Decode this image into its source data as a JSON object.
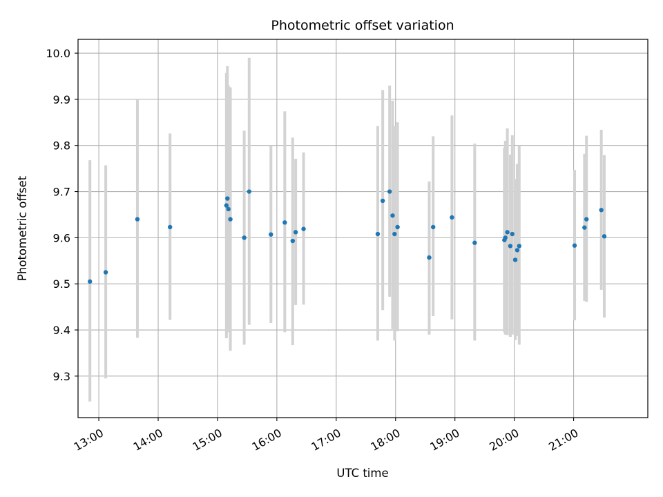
{
  "chart_data": {
    "type": "scatter",
    "title": "Photometric offset variation",
    "xlabel": "UTC time",
    "ylabel": "Photometric offset",
    "x_ticks": [
      "13:00",
      "14:00",
      "15:00",
      "16:00",
      "17:00",
      "18:00",
      "19:00",
      "20:00",
      "21:00"
    ],
    "y_ticks": [
      "9.3",
      "9.4",
      "9.5",
      "9.6",
      "9.7",
      "9.8",
      "9.9",
      "10.0"
    ],
    "xlim": [
      "12:39",
      "22:15"
    ],
    "ylim": [
      9.21,
      10.03
    ],
    "grid": true,
    "marker_color": "#1f77b4",
    "errorbar_color": "#d3d3d3",
    "series": [
      {
        "points": [
          {
            "x": "12:51",
            "y": 9.505,
            "ylow": 9.245,
            "yhigh": 9.768
          },
          {
            "x": "13:07",
            "y": 9.525,
            "ylow": 9.295,
            "yhigh": 9.757
          },
          {
            "x": "13:39",
            "y": 9.64,
            "ylow": 9.383,
            "yhigh": 9.9
          },
          {
            "x": "14:12",
            "y": 9.623,
            "ylow": 9.422,
            "yhigh": 9.826
          },
          {
            "x": "15:09",
            "y": 9.67,
            "ylow": 9.382,
            "yhigh": 9.957
          },
          {
            "x": "15:10",
            "y": 9.685,
            "ylow": 9.399,
            "yhigh": 9.972
          },
          {
            "x": "15:11",
            "y": 9.662,
            "ylow": 9.395,
            "yhigh": 9.93
          },
          {
            "x": "15:13",
            "y": 9.64,
            "ylow": 9.355,
            "yhigh": 9.926
          },
          {
            "x": "15:27",
            "y": 9.6,
            "ylow": 9.368,
            "yhigh": 9.832
          },
          {
            "x": "15:32",
            "y": 9.7,
            "ylow": 9.411,
            "yhigh": 9.99
          },
          {
            "x": "15:54",
            "y": 9.607,
            "ylow": 9.415,
            "yhigh": 9.8
          },
          {
            "x": "16:08",
            "y": 9.633,
            "ylow": 9.395,
            "yhigh": 9.874
          },
          {
            "x": "16:16",
            "y": 9.593,
            "ylow": 9.367,
            "yhigh": 9.817
          },
          {
            "x": "16:19",
            "y": 9.612,
            "ylow": 9.454,
            "yhigh": 9.771
          },
          {
            "x": "16:27",
            "y": 9.619,
            "ylow": 9.455,
            "yhigh": 9.785
          },
          {
            "x": "17:42",
            "y": 9.608,
            "ylow": 9.377,
            "yhigh": 9.842
          },
          {
            "x": "17:47",
            "y": 9.68,
            "ylow": 9.443,
            "yhigh": 9.92
          },
          {
            "x": "17:54",
            "y": 9.7,
            "ylow": 9.472,
            "yhigh": 9.93
          },
          {
            "x": "17:57",
            "y": 9.648,
            "ylow": 9.402,
            "yhigh": 9.897
          },
          {
            "x": "17:59",
            "y": 9.608,
            "ylow": 9.377,
            "yhigh": 9.842
          },
          {
            "x": "18:02",
            "y": 9.623,
            "ylow": 9.397,
            "yhigh": 9.85
          },
          {
            "x": "18:34",
            "y": 9.557,
            "ylow": 9.39,
            "yhigh": 9.722
          },
          {
            "x": "18:38",
            "y": 9.623,
            "ylow": 9.43,
            "yhigh": 9.82
          },
          {
            "x": "18:57",
            "y": 9.644,
            "ylow": 9.423,
            "yhigh": 9.865
          },
          {
            "x": "19:20",
            "y": 9.589,
            "ylow": 9.377,
            "yhigh": 9.804
          },
          {
            "x": "19:50",
            "y": 9.595,
            "ylow": 9.395,
            "yhigh": 9.795
          },
          {
            "x": "19:51",
            "y": 9.6,
            "ylow": 9.39,
            "yhigh": 9.81
          },
          {
            "x": "19:53",
            "y": 9.612,
            "ylow": 9.389,
            "yhigh": 9.837
          },
          {
            "x": "19:56",
            "y": 9.582,
            "ylow": 9.385,
            "yhigh": 9.78
          },
          {
            "x": "19:58",
            "y": 9.608,
            "ylow": 9.39,
            "yhigh": 9.822
          },
          {
            "x": "20:01",
            "y": 9.552,
            "ylow": 9.378,
            "yhigh": 9.727
          },
          {
            "x": "20:03",
            "y": 9.573,
            "ylow": 9.387,
            "yhigh": 9.76
          },
          {
            "x": "20:05",
            "y": 9.582,
            "ylow": 9.368,
            "yhigh": 9.8
          },
          {
            "x": "21:01",
            "y": 9.583,
            "ylow": 9.421,
            "yhigh": 9.747
          },
          {
            "x": "21:11",
            "y": 9.622,
            "ylow": 9.463,
            "yhigh": 9.782
          },
          {
            "x": "21:13",
            "y": 9.64,
            "ylow": 9.461,
            "yhigh": 9.821
          },
          {
            "x": "21:28",
            "y": 9.66,
            "ylow": 9.487,
            "yhigh": 9.834
          },
          {
            "x": "21:31",
            "y": 9.603,
            "ylow": 9.427,
            "yhigh": 9.779
          }
        ]
      }
    ]
  }
}
